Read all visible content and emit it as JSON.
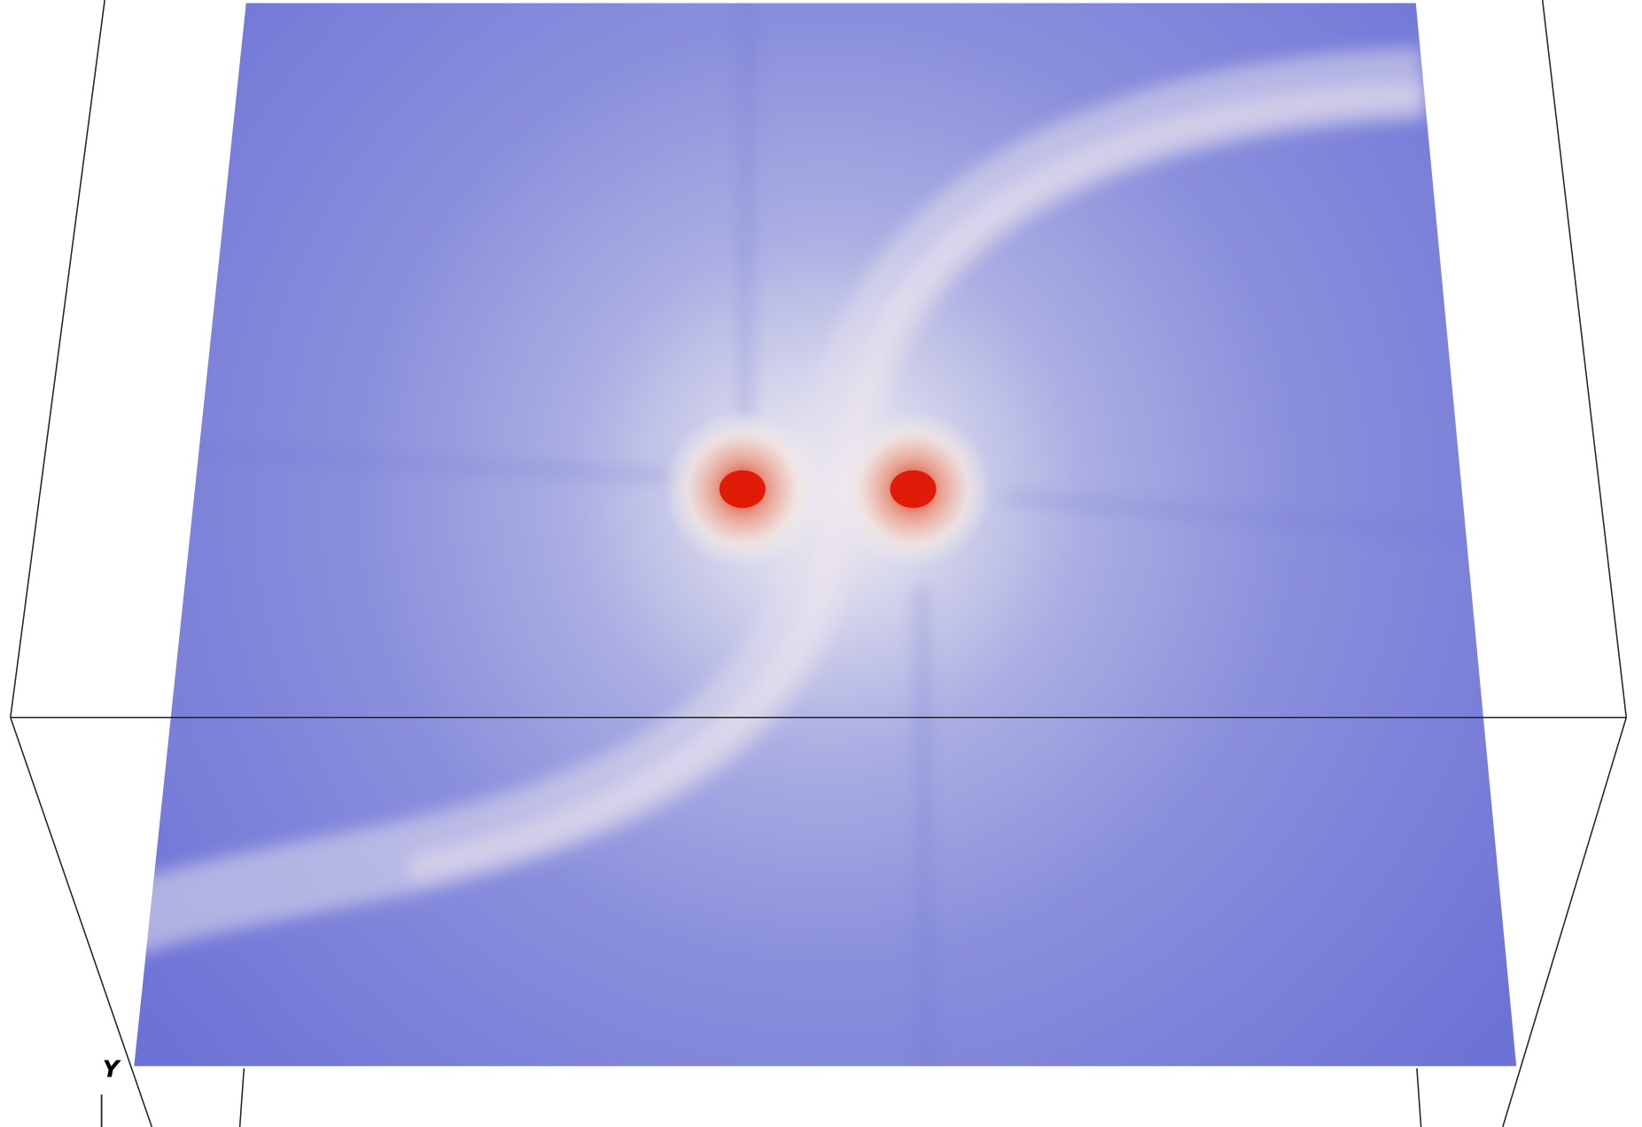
{
  "axis_label": "Y"
}
